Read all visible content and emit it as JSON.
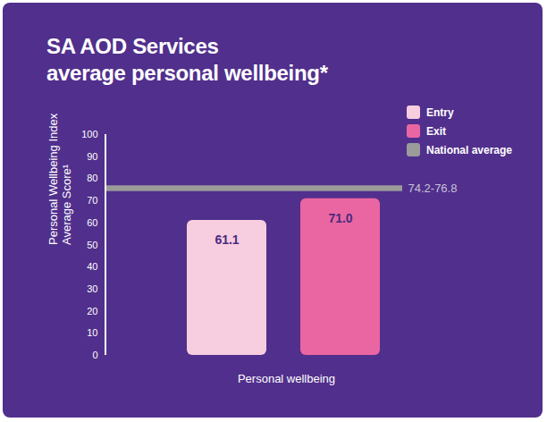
{
  "chart_data": {
    "type": "bar",
    "title": [
      "SA AOD Services",
      "average personal wellbeing*"
    ],
    "categories": [
      "Personal wellbeing"
    ],
    "series": [
      {
        "name": "Entry",
        "color": "#f7cde0",
        "values": [
          61.1
        ],
        "value_labels": [
          "61.1"
        ]
      },
      {
        "name": "Exit",
        "color": "#ea66a2",
        "values": [
          71.0
        ],
        "value_labels": [
          "71.0"
        ]
      }
    ],
    "reference": {
      "name": "National average",
      "color": "#9b9b9b",
      "low": 74.2,
      "high": 76.8,
      "label": "74.2-76.8"
    },
    "y_label": [
      "Personal Wellbeing Index",
      "Average Score¹"
    ],
    "ylim": [
      0,
      100
    ],
    "yticks": [
      0,
      10,
      20,
      30,
      40,
      50,
      60,
      70,
      80,
      90,
      100
    ],
    "grid": false,
    "legend": "top-right",
    "data_labels": true
  }
}
